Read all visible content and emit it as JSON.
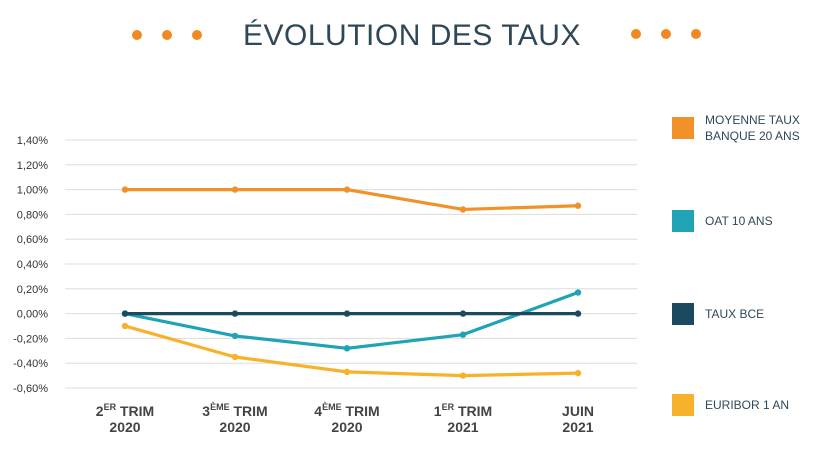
{
  "chart_data": {
    "type": "line",
    "title": "ÉVOLUTION DES TAUX",
    "categories": [
      {
        "main": "2",
        "sup": "ER",
        "after": " TRIM",
        "line2": "2020"
      },
      {
        "main": "3",
        "sup": "ÈME",
        "after": " TRIM",
        "line2": "2020"
      },
      {
        "main": "4",
        "sup": "ÈME",
        "after": " TRIM",
        "line2": "2020"
      },
      {
        "main": "1",
        "sup": "ER",
        "after": " TRIM",
        "line2": "2021"
      },
      {
        "main": "JUIN",
        "sup": "",
        "after": "",
        "line2": "2021"
      }
    ],
    "ylim": [
      -0.6,
      1.4
    ],
    "yticks": [
      1.4,
      1.2,
      1.0,
      0.8,
      0.6,
      0.4,
      0.2,
      0.0,
      -0.2,
      -0.4,
      -0.6
    ],
    "ytick_labels": [
      "1,40%",
      "1,20%",
      "1,00%",
      "0,80%",
      "0,60%",
      "0,40%",
      "0,20%",
      "0,00%",
      "-0,20%",
      "-0,40%",
      "-0,60%"
    ],
    "grid": true,
    "legend_position": "right",
    "series": [
      {
        "name": "MOYENNE TAUX BANQUE 20 ANS",
        "legend_lines": [
          "MOYENNE TAUX",
          "BANQUE 20 ANS"
        ],
        "color": "#f0912a",
        "values": [
          1.0,
          1.0,
          1.0,
          0.84,
          0.87
        ]
      },
      {
        "name": "OAT 10 ANS",
        "legend_lines": [
          "OAT 10 ANS"
        ],
        "color": "#1fa3b5",
        "values": [
          0.0,
          -0.18,
          -0.28,
          -0.17,
          0.17
        ]
      },
      {
        "name": "TAUX BCE",
        "legend_lines": [
          "TAUX BCE"
        ],
        "color": "#1b4a60",
        "values": [
          0.0,
          0.0,
          0.0,
          0.0,
          0.0
        ]
      },
      {
        "name": "EURIBOR 1 AN",
        "legend_lines": [
          "EURIBOR 1 AN"
        ],
        "color": "#f7b22c",
        "values": [
          -0.1,
          -0.35,
          -0.47,
          -0.5,
          -0.48
        ]
      }
    ],
    "decoration_color": "#ef8a23"
  }
}
